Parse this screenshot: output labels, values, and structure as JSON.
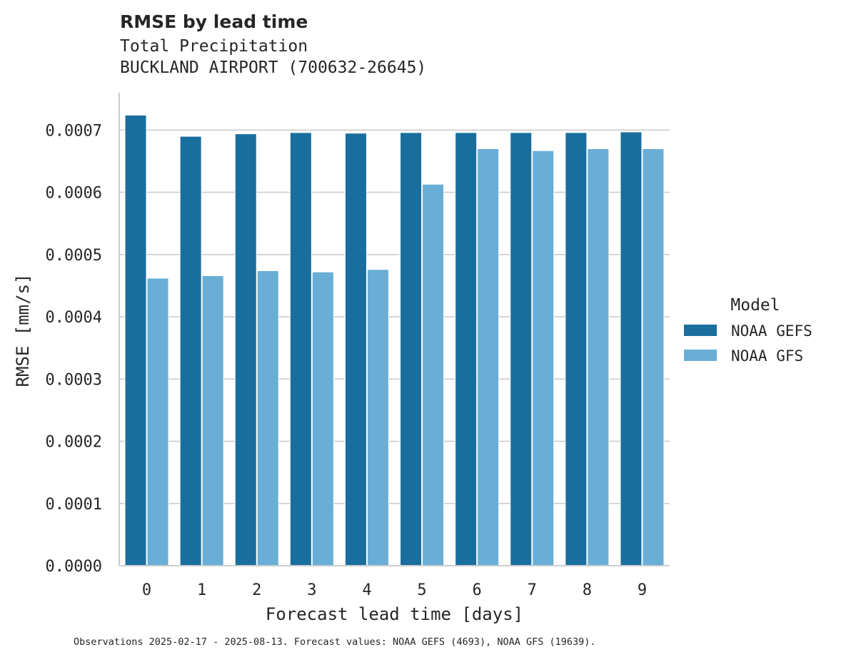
{
  "chart_data": {
    "type": "bar",
    "title": "RMSE by lead time",
    "subtitle_lines": [
      "Total Precipitation",
      "BUCKLAND AIRPORT (700632-26645)"
    ],
    "xlabel": "Forecast lead time [days]",
    "ylabel": "RMSE [mm/s]",
    "categories": [
      "0",
      "1",
      "2",
      "3",
      "4",
      "5",
      "6",
      "7",
      "8",
      "9"
    ],
    "ylim": [
      0,
      0.00076
    ],
    "yticks": [
      "0.0000",
      "0.0001",
      "0.0002",
      "0.0003",
      "0.0004",
      "0.0005",
      "0.0006",
      "0.0007"
    ],
    "grid": "horizontal",
    "legend": {
      "title": "Model",
      "placement": "right"
    },
    "series": [
      {
        "name": "NOAA GEFS",
        "color": "#1a6e9e",
        "values": [
          0.000724,
          0.00069,
          0.000694,
          0.000696,
          0.000695,
          0.000696,
          0.000696,
          0.000696,
          0.000696,
          0.000697
        ]
      },
      {
        "name": "NOAA GFS",
        "color": "#68aed6",
        "values": [
          0.000462,
          0.000466,
          0.000474,
          0.000472,
          0.000476,
          0.000613,
          0.00067,
          0.000667,
          0.00067,
          0.00067
        ]
      }
    ],
    "footer": "Observations 2025-02-17 - 2025-08-13. Forecast values: NOAA GEFS (4693), NOAA GFS (19639)."
  }
}
